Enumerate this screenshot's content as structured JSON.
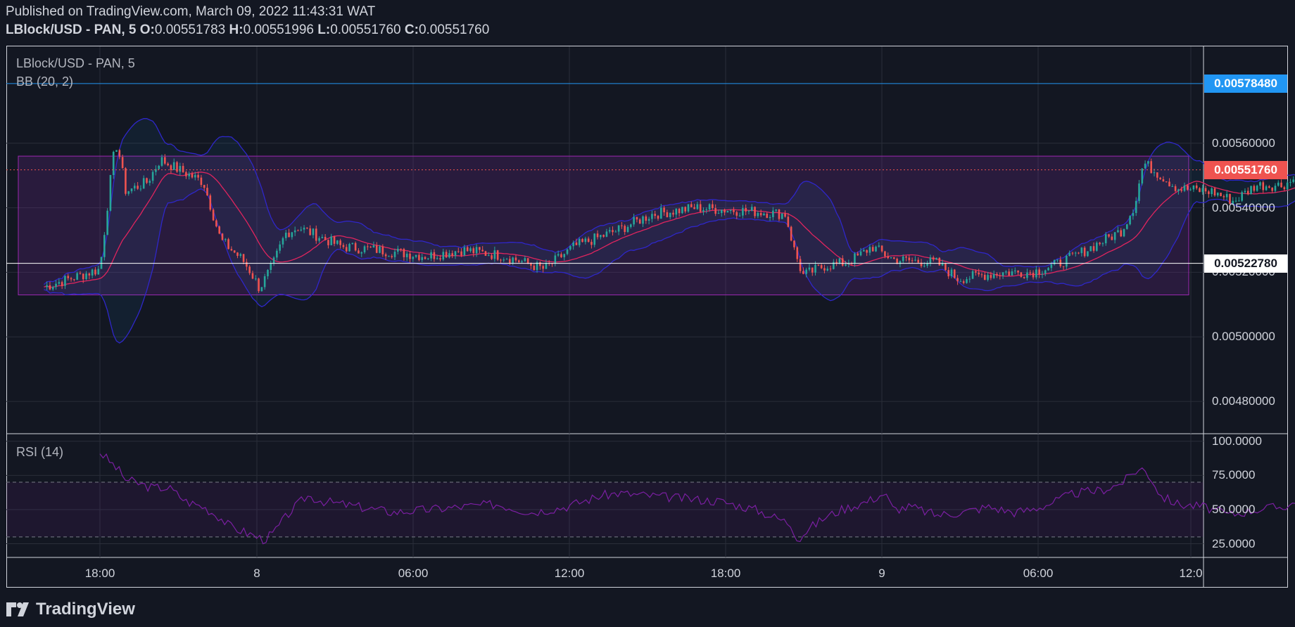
{
  "header": {
    "published": "Published on TradingView.com, March 09, 2022 11:43:31 WAT",
    "symbol": "LBlock/USD - PAN, 5",
    "o_label": "O:",
    "o_value": "0.00551783",
    "h_label": "H:",
    "h_value": "0.00551996",
    "l_label": "L:",
    "l_value": "0.00551760",
    "c_label": "C:",
    "c_value": "0.00551760"
  },
  "main_pane": {
    "title": "LBlock/USD - PAN, 5",
    "indicator": "BB (20, 2)"
  },
  "rsi_pane": {
    "title": "RSI (14)"
  },
  "footer": {
    "brand": "TradingView"
  },
  "colors": {
    "background": "#131722",
    "bull": "#26a69a",
    "bear": "#ef5350",
    "bb_band": "#2f27c9",
    "bb_basis": "#e0245e",
    "range_box": "#7b2fa0",
    "rsi_line": "#7b1fa2",
    "blue_line": "#2196f3",
    "last_price": "#ef5350"
  },
  "chart_data": [
    {
      "type": "candlestick",
      "title": "LBlock/USD - PAN, 5",
      "ylim": [
        0.0047,
        0.0059
      ],
      "y_ticks": [
        "0.00560000",
        "0.00540000",
        "0.00520000",
        "0.00500000",
        "0.00480000"
      ],
      "y_tick_values": [
        0.0056,
        0.0054,
        0.0052,
        0.005,
        0.0048
      ],
      "x_ticks": [
        "18:00",
        "8",
        "06:00",
        "12:00",
        "18:00",
        "9",
        "06:00",
        "12:0"
      ],
      "horizontal_lines": [
        {
          "label": "0.00578480",
          "value": 0.0057848,
          "color": "#2196f3"
        },
        {
          "label": "0.00522780",
          "value": 0.0052278,
          "color": "#ffffff"
        }
      ],
      "last_price": {
        "label": "0.00551760",
        "value": 0.0055176
      },
      "range_box": {
        "top": 0.00556,
        "bottom": 0.00513
      },
      "price_path": [
        [
          0.0,
          0.00521
        ],
        [
          1.5,
          0.00555
        ],
        [
          2.0,
          0.0056
        ],
        [
          3.0,
          0.00545
        ],
        [
          5.5,
          0.00548
        ],
        [
          7.0,
          0.00555
        ],
        [
          9.0,
          0.00552
        ],
        [
          12.0,
          0.00548
        ],
        [
          14.0,
          0.0053
        ],
        [
          16.5,
          0.00524
        ],
        [
          17.5,
          0.0052
        ],
        [
          18.5,
          0.00515
        ],
        [
          20.0,
          0.00522
        ],
        [
          21.5,
          0.00532
        ],
        [
          23.0,
          0.00534
        ],
        [
          28.0,
          0.00528
        ],
        [
          32.0,
          0.00527
        ],
        [
          38.0,
          0.00525
        ],
        [
          42.0,
          0.00527
        ],
        [
          47.0,
          0.00525
        ],
        [
          51.5,
          0.00521
        ],
        [
          55.0,
          0.00528
        ],
        [
          60.0,
          0.00533
        ],
        [
          64.0,
          0.00538
        ],
        [
          69.0,
          0.0054
        ],
        [
          75.0,
          0.00539
        ],
        [
          79.5,
          0.00538
        ],
        [
          80.5,
          0.00527
        ],
        [
          81.5,
          0.00519
        ],
        [
          84.0,
          0.00522
        ],
        [
          86.5,
          0.00523
        ],
        [
          88.0,
          0.00525
        ],
        [
          89.5,
          0.00528
        ],
        [
          92.0,
          0.00524
        ],
        [
          97.0,
          0.00523
        ],
        [
          99.5,
          0.00518
        ],
        [
          102.0,
          0.00519
        ],
        [
          105.0,
          0.0052
        ],
        [
          108.0,
          0.0052
        ],
        [
          110.5,
          0.00522
        ],
        [
          113.0,
          0.00525
        ],
        [
          116.5,
          0.0053
        ],
        [
          118.5,
          0.00533
        ],
        [
          120.0,
          0.00541
        ],
        [
          121.0,
          0.00554
        ],
        [
          123.0,
          0.0055
        ],
        [
          125.0,
          0.00546
        ],
        [
          129.0,
          0.00545
        ],
        [
          131.5,
          0.00542
        ],
        [
          134.0,
          0.00547
        ],
        [
          137.0,
          0.00547
        ],
        [
          140.5,
          0.00551
        ]
      ]
    },
    {
      "type": "line",
      "title": "RSI (14)",
      "ylim": [
        15,
        105
      ],
      "y_ticks": [
        "100.0000",
        "75.0000",
        "50.0000",
        "25.0000"
      ],
      "y_tick_values": [
        100,
        75,
        50,
        25
      ],
      "bands": [
        70,
        30
      ],
      "x": [
        0,
        2,
        3,
        6,
        8,
        10,
        12,
        14,
        15,
        17,
        19,
        20,
        22,
        24,
        26,
        30,
        34,
        38,
        42,
        46,
        50,
        54,
        58,
        60,
        64,
        68,
        72,
        76,
        80,
        81,
        82,
        84,
        86,
        89,
        91,
        92,
        94,
        97,
        100,
        103,
        106,
        108,
        110,
        113,
        116,
        118,
        119,
        120,
        121,
        122,
        123,
        125,
        128,
        131,
        134,
        137,
        140.5
      ],
      "values": [
        92,
        80,
        72,
        66,
        66,
        56,
        52,
        44,
        38,
        33,
        28,
        32,
        48,
        60,
        56,
        52,
        48,
        50,
        52,
        54,
        48,
        52,
        60,
        62,
        60,
        58,
        56,
        50,
        40,
        28,
        35,
        44,
        50,
        56,
        62,
        50,
        52,
        46,
        48,
        52,
        48,
        50,
        54,
        62,
        64,
        68,
        72,
        78,
        80,
        72,
        60,
        54,
        52,
        46,
        50,
        52,
        58
      ]
    }
  ]
}
